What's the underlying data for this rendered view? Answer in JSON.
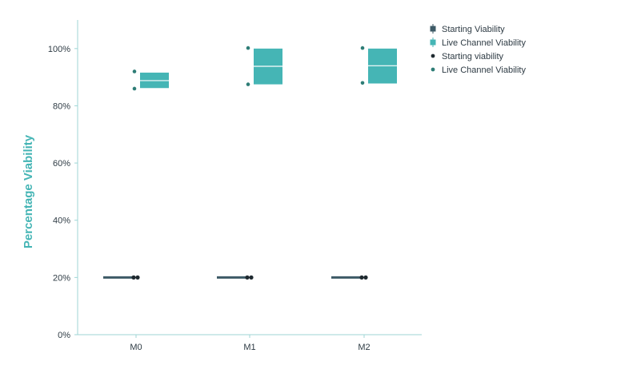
{
  "chart_data": {
    "type": "box",
    "ylabel": "Percentage Viability",
    "ylim": [
      0,
      110
    ],
    "yticks": [
      0,
      20,
      40,
      60,
      80,
      100
    ],
    "ytick_labels": [
      "0%",
      "20%",
      "40%",
      "60%",
      "80%",
      "100%"
    ],
    "categories": [
      "M0",
      "M1",
      "M2"
    ],
    "series": [
      {
        "name": "Starting Viability",
        "type": "box",
        "color": "#3d5a66",
        "boxes": [
          {
            "q1": 20,
            "median": 20,
            "q3": 20
          },
          {
            "q1": 20,
            "median": 20,
            "q3": 20
          },
          {
            "q1": 20,
            "median": 20,
            "q3": 20
          }
        ]
      },
      {
        "name": "Live Channel Viability",
        "type": "box",
        "color": "#45b5b5",
        "boxes": [
          {
            "q1": 86.2,
            "median": 88.8,
            "q3": 91.6
          },
          {
            "q1": 87.5,
            "median": 93.8,
            "q3": 100
          },
          {
            "q1": 87.8,
            "median": 94.0,
            "q3": 100
          }
        ]
      },
      {
        "name": "Starting viability",
        "type": "points",
        "color": "#1f2a30",
        "points": [
          [
            20,
            20
          ],
          [
            20,
            20
          ],
          [
            20,
            20
          ]
        ]
      },
      {
        "name": "Live Channel Viability",
        "type": "points",
        "color": "#2e7d76",
        "points": [
          [
            92,
            86
          ],
          [
            100.2,
            87.5
          ],
          [
            100.2,
            88
          ]
        ]
      }
    ],
    "legend_position": "top-right",
    "grid": false
  }
}
